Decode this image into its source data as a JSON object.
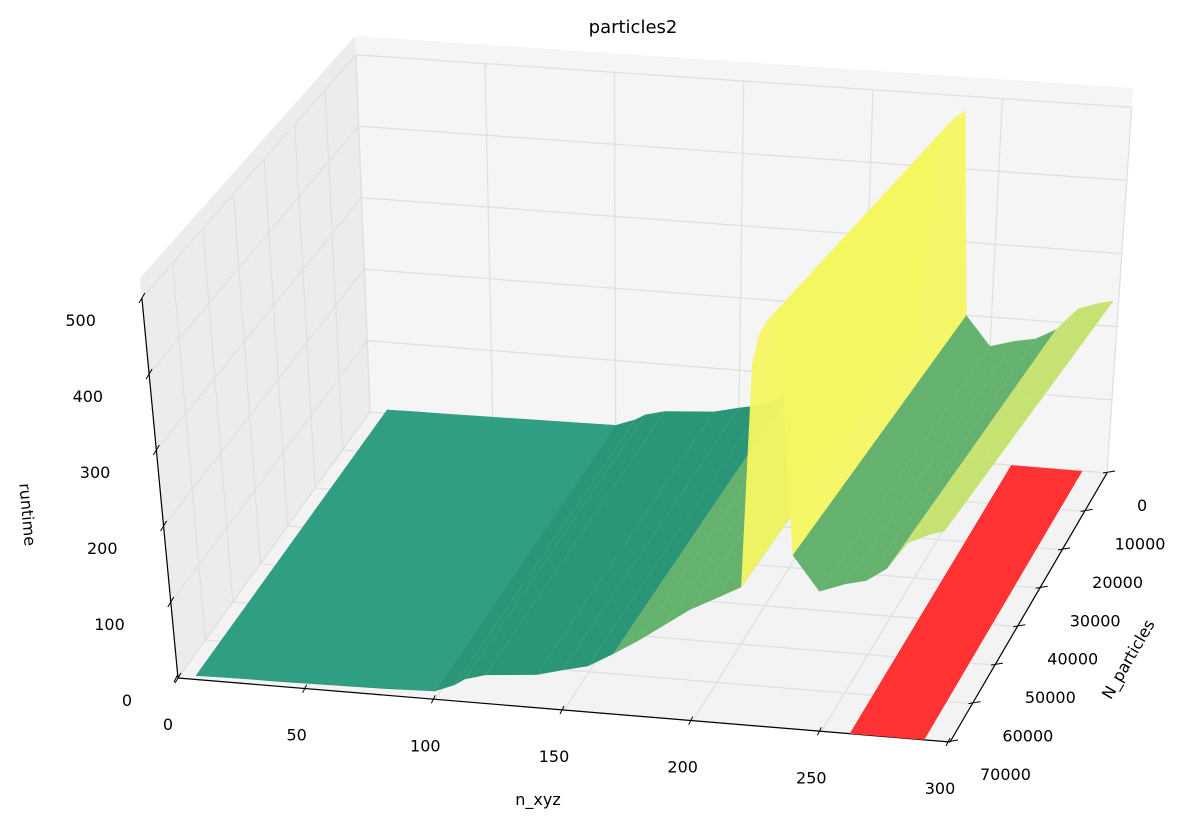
{
  "chart_data": {
    "type": "surface3d",
    "title": "particles2",
    "xlabel": "n_xyz",
    "ylabel": "N_particles",
    "zlabel": "runtime",
    "xlim": [
      0,
      300
    ],
    "ylim": [
      0,
      70000
    ],
    "zlim": [
      0,
      500
    ],
    "x_ticks": [
      "0",
      "50",
      "100",
      "150",
      "200",
      "250",
      "300"
    ],
    "y_ticks": [
      "0",
      "10000",
      "20000",
      "30000",
      "40000",
      "50000",
      "60000",
      "70000"
    ],
    "z_ticks": [
      "0",
      "100",
      "200",
      "300",
      "400",
      "500"
    ],
    "grid": true,
    "surfaces": [
      {
        "colormap": "summer_r",
        "profile_x": [
          7,
          20,
          40,
          60,
          80,
          100,
          108,
          112,
          120,
          140,
          150,
          160,
          170,
          180,
          190,
          200,
          210,
          220,
          226,
          229,
          232,
          236,
          240,
          250,
          260,
          268,
          276,
          284,
          292,
          298
        ],
        "profile_runtime_approx": [
          5,
          6,
          6,
          7,
          8,
          10,
          20,
          28,
          35,
          40,
          48,
          55,
          72,
          90,
          110,
          130,
          145,
          160,
          420,
          455,
          470,
          480,
          200,
          160,
          170,
          175,
          190,
          220,
          230,
          235
        ]
      },
      {
        "color": "#ff3333",
        "x_range": [
          261,
          290
        ],
        "runtime": 0
      }
    ]
  }
}
